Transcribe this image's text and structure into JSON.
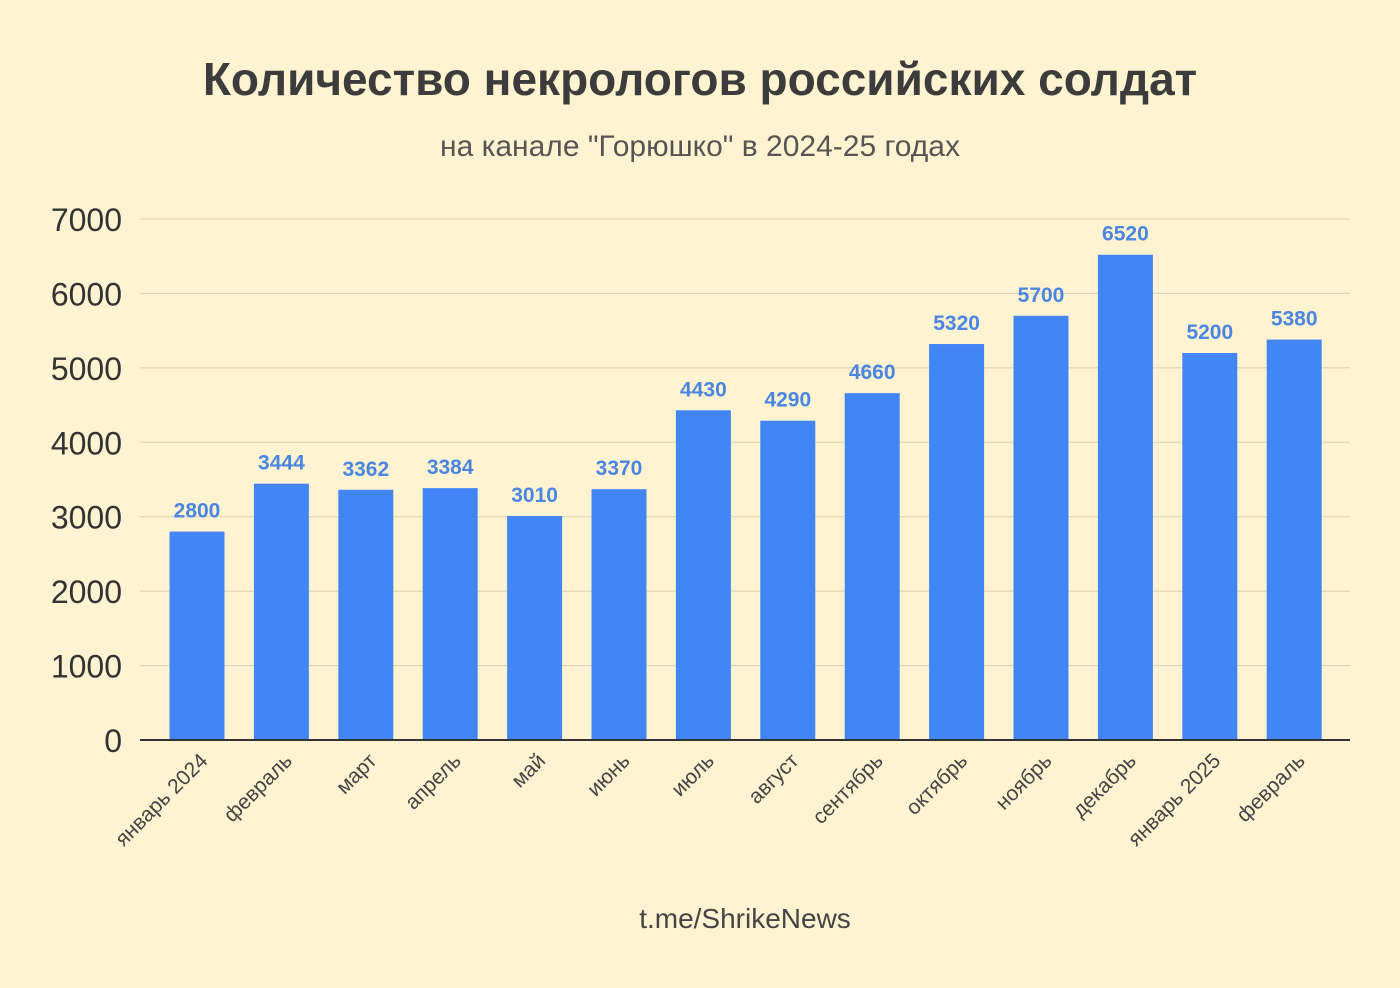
{
  "chart_data": {
    "type": "bar",
    "title": "Количество некрологов российских солдат",
    "subtitle": "на канале \"Горюшко\" в 2024-25 годах",
    "source": "t.me/ShrikeNews",
    "categories": [
      "январь 2024",
      "февраль",
      "март",
      "апрель",
      "май",
      "июнь",
      "июль",
      "август",
      "сентябрь",
      "октябрь",
      "ноябрь",
      "декабрь",
      "январь 2025",
      "февраль"
    ],
    "values": [
      2800,
      3444,
      3362,
      3384,
      3010,
      3370,
      4430,
      4290,
      4660,
      5320,
      5700,
      6520,
      5200,
      5380
    ],
    "ylim": [
      0,
      7000
    ],
    "yticks": [
      0,
      1000,
      2000,
      3000,
      4000,
      5000,
      6000,
      7000
    ],
    "grid": true,
    "data_labels": true,
    "colors": {
      "bar": "#4285f4",
      "label": "#4a86e0",
      "background": "#fff3d1",
      "grid": "#d8d0b8",
      "axis": "#333333"
    }
  }
}
